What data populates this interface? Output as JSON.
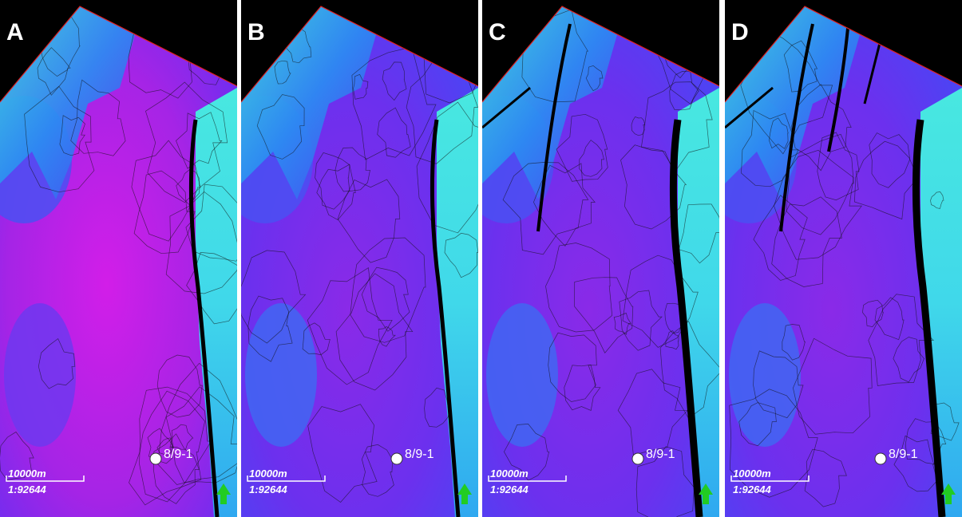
{
  "panels": [
    {
      "label": "A",
      "well": "8/9-1",
      "scale_length": "10000m",
      "scale_ratio": "1:92644"
    },
    {
      "label": "B",
      "well": "8/9-1",
      "scale_length": "10000m",
      "scale_ratio": "1:92644"
    },
    {
      "label": "C",
      "well": "8/9-1",
      "scale_length": "10000m",
      "scale_ratio": "1:92644"
    },
    {
      "label": "D",
      "well": "8/9-1",
      "scale_length": "10000m",
      "scale_ratio": "1:92644"
    }
  ]
}
